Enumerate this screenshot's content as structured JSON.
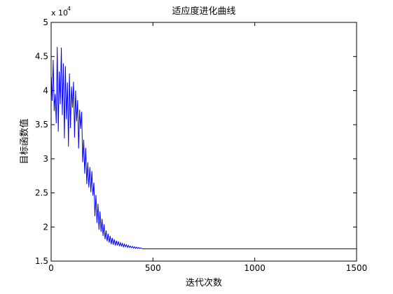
{
  "chart_data": {
    "type": "line",
    "title": "适应度进化曲线",
    "xlabel": "迭代次数",
    "ylabel": "目标函数值",
    "xlim": [
      0,
      1500
    ],
    "ylim": [
      15000,
      50000
    ],
    "x_ticks": [
      0,
      500,
      1000,
      1500
    ],
    "x_tick_labels": [
      "0",
      "500",
      "1000",
      "1500"
    ],
    "y_tick_labels": [
      "1.5",
      "2",
      "2.5",
      "3",
      "3.5",
      "4",
      "4.5",
      "5"
    ],
    "y_tick_values": [
      15000,
      20000,
      25000,
      30000,
      35000,
      40000,
      45000,
      50000
    ],
    "y_exponent_label": "x 10",
    "y_exponent_power": "4",
    "grid": false,
    "box": true,
    "line_color": "#0000ff",
    "series": [
      {
        "x": [
          1,
          5,
          10,
          15,
          20,
          25,
          30,
          35,
          40,
          45,
          50,
          55,
          60,
          65,
          70,
          75,
          80,
          85,
          90,
          95,
          100,
          105,
          110,
          115,
          120,
          125,
          130,
          135,
          140,
          145,
          150,
          155,
          160,
          165,
          170,
          175,
          180,
          185,
          190,
          195,
          200,
          205,
          210,
          215,
          220,
          225,
          230,
          235,
          240,
          245,
          250,
          255,
          260,
          265,
          270,
          275,
          280,
          285,
          290,
          295,
          300,
          305,
          310,
          315,
          320,
          325,
          330,
          335,
          340,
          345,
          350,
          355,
          360,
          365,
          370,
          375,
          380,
          385,
          390,
          395,
          400,
          405,
          410,
          415,
          420,
          425,
          430,
          435,
          440,
          445,
          450,
          500,
          600,
          700,
          800,
          900,
          1000,
          1100,
          1200,
          1300,
          1400,
          1500
        ],
        "y": [
          42000,
          38500,
          44500,
          37000,
          39500,
          35200,
          46400,
          34000,
          42800,
          38000,
          46300,
          36400,
          44000,
          33000,
          43600,
          35800,
          41200,
          31800,
          42500,
          34500,
          40600,
          37500,
          41300,
          33100,
          40000,
          35500,
          38600,
          31500,
          37200,
          34400,
          36900,
          29500,
          32800,
          27800,
          31600,
          26300,
          29500,
          25800,
          28800,
          25100,
          28200,
          24600,
          26500,
          21600,
          24700,
          20600,
          23400,
          19600,
          22300,
          19300,
          21200,
          18700,
          20400,
          18200,
          19500,
          17900,
          19000,
          17700,
          18700,
          17500,
          18400,
          17400,
          18200,
          17300,
          18000,
          17300,
          17900,
          17200,
          17700,
          17200,
          17600,
          17100,
          17500,
          17100,
          17400,
          17000,
          17300,
          17000,
          17200,
          16950,
          17150,
          16900,
          17100,
          16850,
          17050,
          16850,
          17000,
          16850,
          16950,
          16850,
          16800,
          16800,
          16800,
          16800,
          16800,
          16800,
          16800,
          16800,
          16800,
          16800,
          16800,
          16800
        ]
      }
    ]
  }
}
